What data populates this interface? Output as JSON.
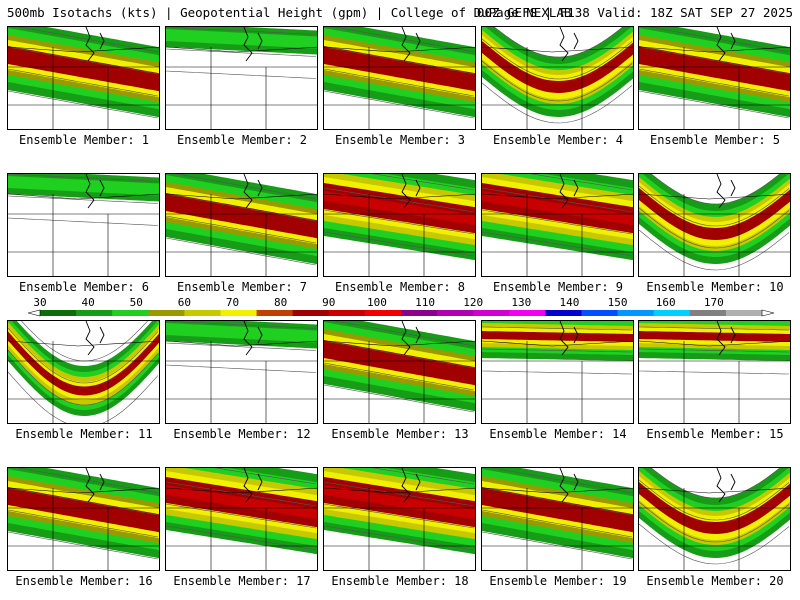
{
  "header": {
    "left_text": "500mb Isotachs (kts) | Geopotential Height (gpm) | College of DuPage NEXLAB",
    "right_text": "00Z GEFS | F138 Valid: 18Z SAT SEP 27 2025"
  },
  "legend": {
    "ticks": [
      "30",
      "40",
      "50",
      "60",
      "70",
      "80",
      "90",
      "100",
      "110",
      "120",
      "130",
      "140",
      "150",
      "160",
      "170"
    ],
    "colors": [
      "#0b6e0b",
      "#169c16",
      "#20d020",
      "#9a9a00",
      "#c8c800",
      "#f0f000",
      "#c04000",
      "#a00000",
      "#c80000",
      "#f00000",
      "#8a008a",
      "#b000b0",
      "#d000d0",
      "#f000f0",
      "#0000c8",
      "#0050ff",
      "#0098ff",
      "#00d0ff",
      "#808080",
      "#b0b0b0"
    ]
  },
  "members": [
    {
      "label": "Ensemble Member: 1",
      "style": "zonal"
    },
    {
      "label": "Ensemble Member: 2",
      "style": "weak"
    },
    {
      "label": "Ensemble Member: 3",
      "style": "zonal"
    },
    {
      "label": "Ensemble Member: 4",
      "style": "trough"
    },
    {
      "label": "Ensemble Member: 5",
      "style": "zonal"
    },
    {
      "label": "Ensemble Member: 6",
      "style": "weak"
    },
    {
      "label": "Ensemble Member: 7",
      "style": "zonal"
    },
    {
      "label": "Ensemble Member: 8",
      "style": "strong"
    },
    {
      "label": "Ensemble Member: 9",
      "style": "strong"
    },
    {
      "label": "Ensemble Member: 10",
      "style": "trough"
    },
    {
      "label": "Ensemble Member: 11",
      "style": "deep"
    },
    {
      "label": "Ensemble Member: 12",
      "style": "weak"
    },
    {
      "label": "Ensemble Member: 13",
      "style": "zonal"
    },
    {
      "label": "Ensemble Member: 14",
      "style": "north"
    },
    {
      "label": "Ensemble Member: 15",
      "style": "north"
    },
    {
      "label": "Ensemble Member: 16",
      "style": "zonal"
    },
    {
      "label": "Ensemble Member: 17",
      "style": "strong"
    },
    {
      "label": "Ensemble Member: 18",
      "style": "strong"
    },
    {
      "label": "Ensemble Member: 19",
      "style": "zonal"
    },
    {
      "label": "Ensemble Member: 20",
      "style": "trough"
    }
  ]
}
